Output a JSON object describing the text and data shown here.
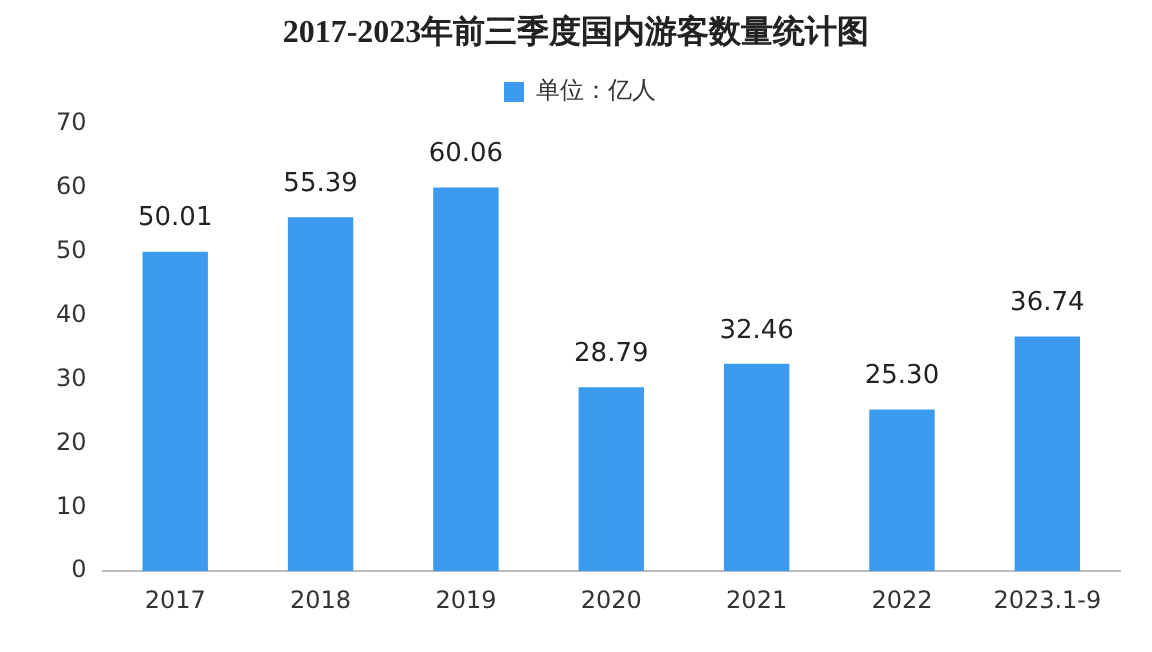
{
  "chart_data": {
    "type": "bar",
    "title": "2017-2023年前三季度国内游客数量统计图",
    "categories": [
      "2017",
      "2018",
      "2019",
      "2020",
      "2021",
      "2022",
      "2023.1-9"
    ],
    "series": [
      {
        "name": "单位：亿人",
        "color": "#3c9bef",
        "values": [
          50.01,
          55.39,
          60.06,
          28.79,
          32.46,
          25.3,
          36.74
        ],
        "value_labels": [
          "50.01",
          "55.39",
          "60.06",
          "28.79",
          "32.46",
          "25.30",
          "36.74"
        ]
      }
    ],
    "ylim": [
      0,
      70
    ],
    "yticks": [
      0,
      10,
      20,
      30,
      40,
      50,
      60,
      70
    ],
    "grid": false,
    "legend": "top"
  }
}
